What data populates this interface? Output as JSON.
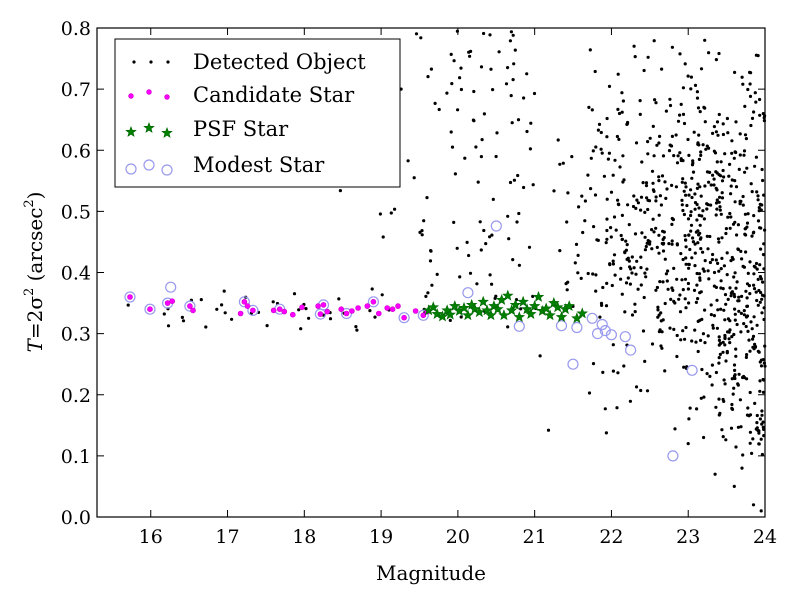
{
  "chart_data": {
    "type": "scatter",
    "xlabel": "Magnitude",
    "ylabel_parts": [
      "T",
      "=2σ",
      "2",
      " (arcsec",
      "2",
      ")"
    ],
    "xlim": [
      15.3,
      24
    ],
    "ylim": [
      0.0,
      0.8
    ],
    "x_ticks": [
      "16",
      "17",
      "18",
      "19",
      "20",
      "21",
      "22",
      "23",
      "24"
    ],
    "y_ticks": [
      "0.0",
      "0.1",
      "0.2",
      "0.3",
      "0.4",
      "0.5",
      "0.6",
      "0.7",
      "0.8"
    ],
    "legend": {
      "position": "top-left",
      "entries": [
        "Detected Object",
        "Candidate Star",
        "PSF Star",
        "Modest Star"
      ]
    },
    "colors": {
      "detected": "#000000",
      "candidate": "#ff00ff",
      "psf": "#008000",
      "modest": "#9999ee"
    },
    "series": [
      {
        "name": "Candidate Star",
        "points": [
          [
            15.73,
            0.36
          ],
          [
            15.99,
            0.34
          ],
          [
            16.22,
            0.35
          ],
          [
            16.28,
            0.353
          ],
          [
            16.51,
            0.345
          ],
          [
            16.55,
            0.338
          ],
          [
            17.17,
            0.333
          ],
          [
            17.22,
            0.352
          ],
          [
            17.26,
            0.345
          ],
          [
            17.33,
            0.338
          ],
          [
            17.6,
            0.338
          ],
          [
            17.68,
            0.34
          ],
          [
            17.74,
            0.336
          ],
          [
            17.85,
            0.331
          ],
          [
            17.97,
            0.343
          ],
          [
            18.18,
            0.345
          ],
          [
            18.21,
            0.332
          ],
          [
            18.25,
            0.347
          ],
          [
            18.3,
            0.336
          ],
          [
            18.48,
            0.34
          ],
          [
            18.55,
            0.333
          ],
          [
            18.62,
            0.337
          ],
          [
            18.7,
            0.342
          ],
          [
            18.82,
            0.345
          ],
          [
            18.9,
            0.352
          ],
          [
            18.97,
            0.333
          ],
          [
            19.08,
            0.342
          ],
          [
            19.15,
            0.34
          ],
          [
            19.22,
            0.345
          ],
          [
            19.3,
            0.326
          ],
          [
            19.45,
            0.337
          ],
          [
            19.55,
            0.33
          ],
          [
            19.6,
            0.336
          ]
        ]
      },
      {
        "name": "PSF Star",
        "points": [
          [
            19.62,
            0.338
          ],
          [
            19.68,
            0.343
          ],
          [
            19.73,
            0.332
          ],
          [
            19.8,
            0.328
          ],
          [
            19.86,
            0.338
          ],
          [
            19.9,
            0.331
          ],
          [
            19.96,
            0.345
          ],
          [
            20.02,
            0.337
          ],
          [
            20.08,
            0.342
          ],
          [
            20.13,
            0.33
          ],
          [
            20.18,
            0.347
          ],
          [
            20.22,
            0.34
          ],
          [
            20.28,
            0.335
          ],
          [
            20.33,
            0.352
          ],
          [
            20.38,
            0.338
          ],
          [
            20.43,
            0.33
          ],
          [
            20.47,
            0.345
          ],
          [
            20.52,
            0.34
          ],
          [
            20.57,
            0.355
          ],
          [
            20.6,
            0.33
          ],
          [
            20.65,
            0.362
          ],
          [
            20.7,
            0.338
          ],
          [
            20.75,
            0.347
          ],
          [
            20.8,
            0.327
          ],
          [
            20.85,
            0.352
          ],
          [
            20.9,
            0.34
          ],
          [
            20.95,
            0.332
          ],
          [
            21.0,
            0.345
          ],
          [
            21.05,
            0.36
          ],
          [
            21.1,
            0.337
          ],
          [
            21.15,
            0.341
          ],
          [
            21.2,
            0.33
          ],
          [
            21.25,
            0.35
          ],
          [
            21.3,
            0.343
          ],
          [
            21.35,
            0.327
          ],
          [
            21.4,
            0.34
          ],
          [
            21.45,
            0.345
          ],
          [
            21.55,
            0.325
          ],
          [
            21.62,
            0.333
          ]
        ]
      },
      {
        "name": "Modest Star",
        "points": [
          [
            15.73,
            0.36
          ],
          [
            15.99,
            0.34
          ],
          [
            16.22,
            0.35
          ],
          [
            16.26,
            0.376
          ],
          [
            16.51,
            0.345
          ],
          [
            17.22,
            0.352
          ],
          [
            17.33,
            0.338
          ],
          [
            17.68,
            0.34
          ],
          [
            18.21,
            0.332
          ],
          [
            18.25,
            0.347
          ],
          [
            18.55,
            0.333
          ],
          [
            18.9,
            0.352
          ],
          [
            19.3,
            0.326
          ],
          [
            19.55,
            0.33
          ],
          [
            20.13,
            0.367
          ],
          [
            20.5,
            0.476
          ],
          [
            20.8,
            0.312
          ],
          [
            21.35,
            0.313
          ],
          [
            21.5,
            0.25
          ],
          [
            21.55,
            0.31
          ],
          [
            21.75,
            0.325
          ],
          [
            21.82,
            0.3
          ],
          [
            21.88,
            0.315
          ],
          [
            21.92,
            0.305
          ],
          [
            22.0,
            0.298
          ],
          [
            22.18,
            0.295
          ],
          [
            22.25,
            0.273
          ],
          [
            22.8,
            0.1
          ],
          [
            23.05,
            0.24
          ]
        ]
      },
      {
        "name": "Detected Object",
        "generator": {
          "seed": 20240517,
          "stars": {
            "count": 55,
            "x_range": [
              15.7,
              21.7
            ],
            "y_center": 0.34,
            "y_spread": 0.015
          },
          "field_faint": {
            "count": 820,
            "x_range": [
              21.0,
              24.0
            ],
            "y_range": [
              0.1,
              0.8
            ]
          },
          "field_mid": {
            "count": 90,
            "x_range": [
              19.5,
              21.0
            ],
            "y_range": [
              0.38,
              0.8
            ]
          },
          "field_bright": {
            "count": 12,
            "x_range": [
              18.0,
              19.5
            ],
            "y_range": [
              0.45,
              0.8
            ]
          },
          "extra": [
            [
              21.18,
              0.142
            ],
            [
              18.47,
              0.534
            ],
            [
              19.65,
              0.435
            ],
            [
              17.9,
              0.555
            ],
            [
              23.35,
              0.07
            ],
            [
              23.95,
              0.01
            ],
            [
              23.85,
              0.02
            ],
            [
              23.6,
              0.05
            ],
            [
              23.7,
              0.08
            ],
            [
              23.2,
              0.13
            ],
            [
              23.0,
              0.12
            ]
          ]
        }
      }
    ]
  }
}
